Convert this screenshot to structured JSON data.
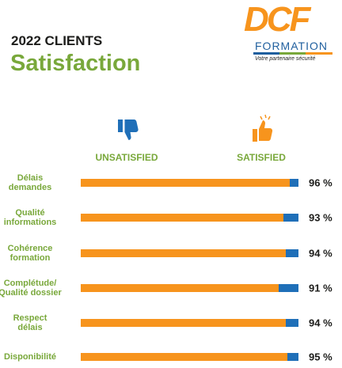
{
  "header": {
    "title": "2022 CLIENTS",
    "subtitle": "Satisfaction"
  },
  "logo": {
    "name": "DCF",
    "sub": "FORMATION",
    "tagline": "Votre partenaire sécurité"
  },
  "chart_data": {
    "type": "bar",
    "orientation": "horizontal",
    "stacked": true,
    "categories": [
      "Délais\ndemandes",
      "Qualité\ninformations",
      "Cohérence\nformation",
      "Complétude/\nQualité dossier",
      "Respect\ndélais",
      "Disponibilité"
    ],
    "xlim": [
      0,
      100
    ],
    "series": [
      {
        "name": "SATISFIED",
        "color": "#f7941d",
        "values": [
          96,
          93,
          94,
          91,
          94,
          95
        ],
        "value_labels": [
          "96 %",
          "93 %",
          "94 %",
          "91 %",
          "94 %",
          "95 %"
        ]
      },
      {
        "name": "UNSATISFIED",
        "color": "#1f6fb8",
        "values": [
          4,
          7,
          6,
          9,
          6,
          5
        ]
      }
    ]
  }
}
